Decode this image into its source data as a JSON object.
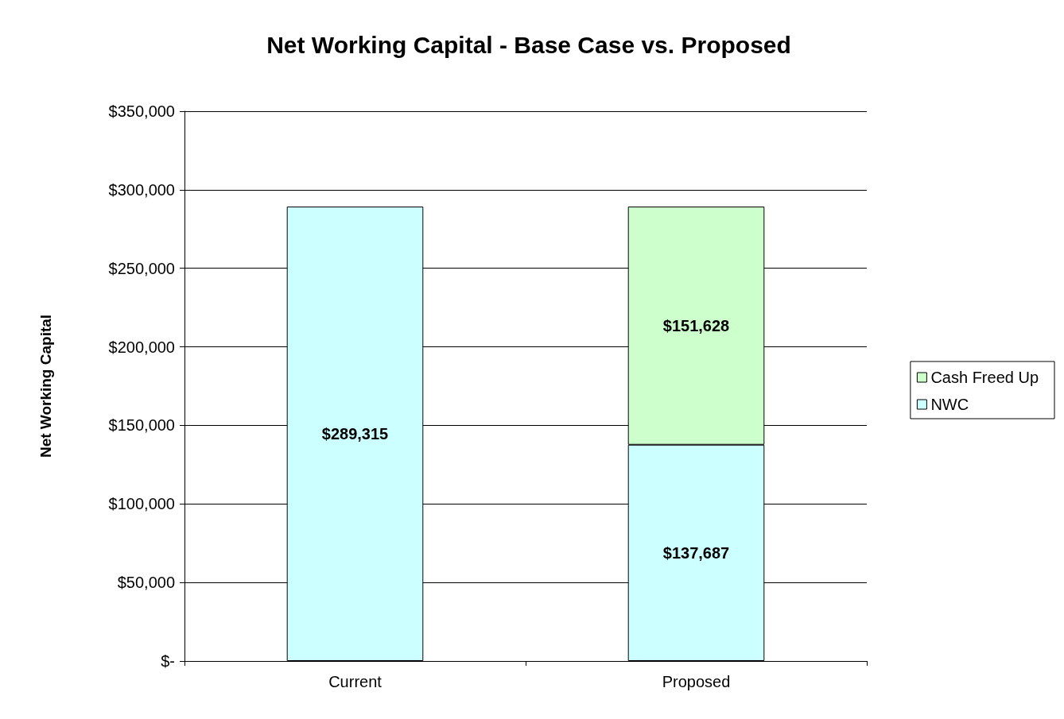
{
  "chart_data": {
    "type": "bar",
    "title": "Net Working Capital - Base Case vs. Proposed",
    "ylabel": "Net Working Capital",
    "categories": [
      "Current",
      "Proposed"
    ],
    "stacked": true,
    "series": [
      {
        "name": "NWC",
        "color": "#ccffff",
        "values": [
          289315,
          137687
        ],
        "value_labels": [
          "$289,315",
          "$137,687"
        ]
      },
      {
        "name": "Cash Freed Up",
        "color": "#ccffcc",
        "values": [
          null,
          151628
        ],
        "value_labels": [
          null,
          "$151,628"
        ]
      }
    ],
    "ylim": [
      0,
      350000
    ],
    "yticks": [
      {
        "value": 0,
        "label": "$-"
      },
      {
        "value": 50000,
        "label": "$50,000"
      },
      {
        "value": 100000,
        "label": "$100,000"
      },
      {
        "value": 150000,
        "label": "$150,000"
      },
      {
        "value": 200000,
        "label": "$200,000"
      },
      {
        "value": 250000,
        "label": "$250,000"
      },
      {
        "value": 300000,
        "label": "$300,000"
      },
      {
        "value": 350000,
        "label": "$350,000"
      }
    ],
    "grid": "y",
    "legend": "right"
  }
}
